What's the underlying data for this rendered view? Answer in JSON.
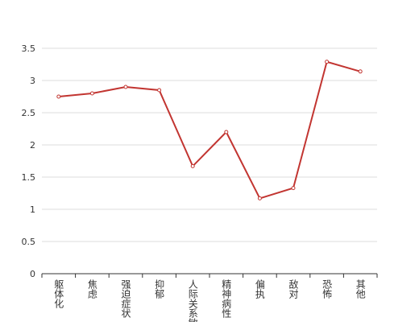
{
  "chart_data": {
    "type": "line",
    "categories": [
      "躯体化",
      "焦虑",
      "强迫症状",
      "抑郁",
      "人际关系敏感",
      "精神病性",
      "偏执",
      "敌对",
      "恐怖",
      "其他"
    ],
    "values": [
      2.75,
      2.8,
      2.9,
      2.85,
      1.67,
      2.2,
      1.17,
      1.33,
      3.29,
      3.14
    ],
    "color": "#c23531",
    "ylim": [
      0,
      3.5
    ],
    "yticks": [
      0,
      0.5,
      1,
      1.5,
      2,
      2.5,
      3,
      3.5
    ],
    "grid": true
  }
}
